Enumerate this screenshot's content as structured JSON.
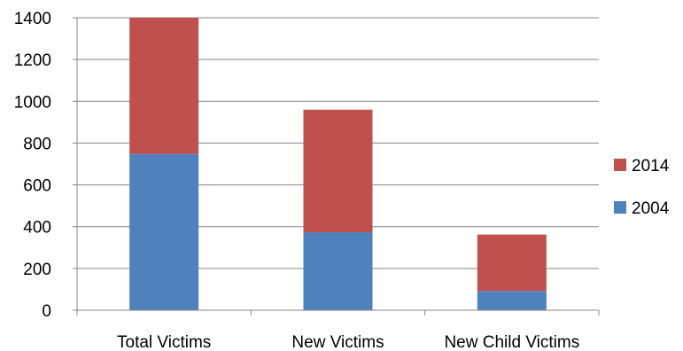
{
  "chart_data": {
    "type": "bar",
    "stacked": true,
    "categories": [
      "Total Victims",
      "New Victims",
      "New Child Victims"
    ],
    "series": [
      {
        "name": "2004",
        "values": [
          748,
          373,
          92
        ],
        "color": "#4F81BD"
      },
      {
        "name": "2014",
        "values": [
          652,
          587,
          270
        ],
        "color": "#C0504D"
      }
    ],
    "ylim": [
      0,
      1400
    ],
    "yticks": [
      0,
      200,
      400,
      600,
      800,
      1000,
      1200,
      1400
    ],
    "grid": true,
    "legend": "right",
    "legend_order": [
      "2014",
      "2004"
    ]
  }
}
